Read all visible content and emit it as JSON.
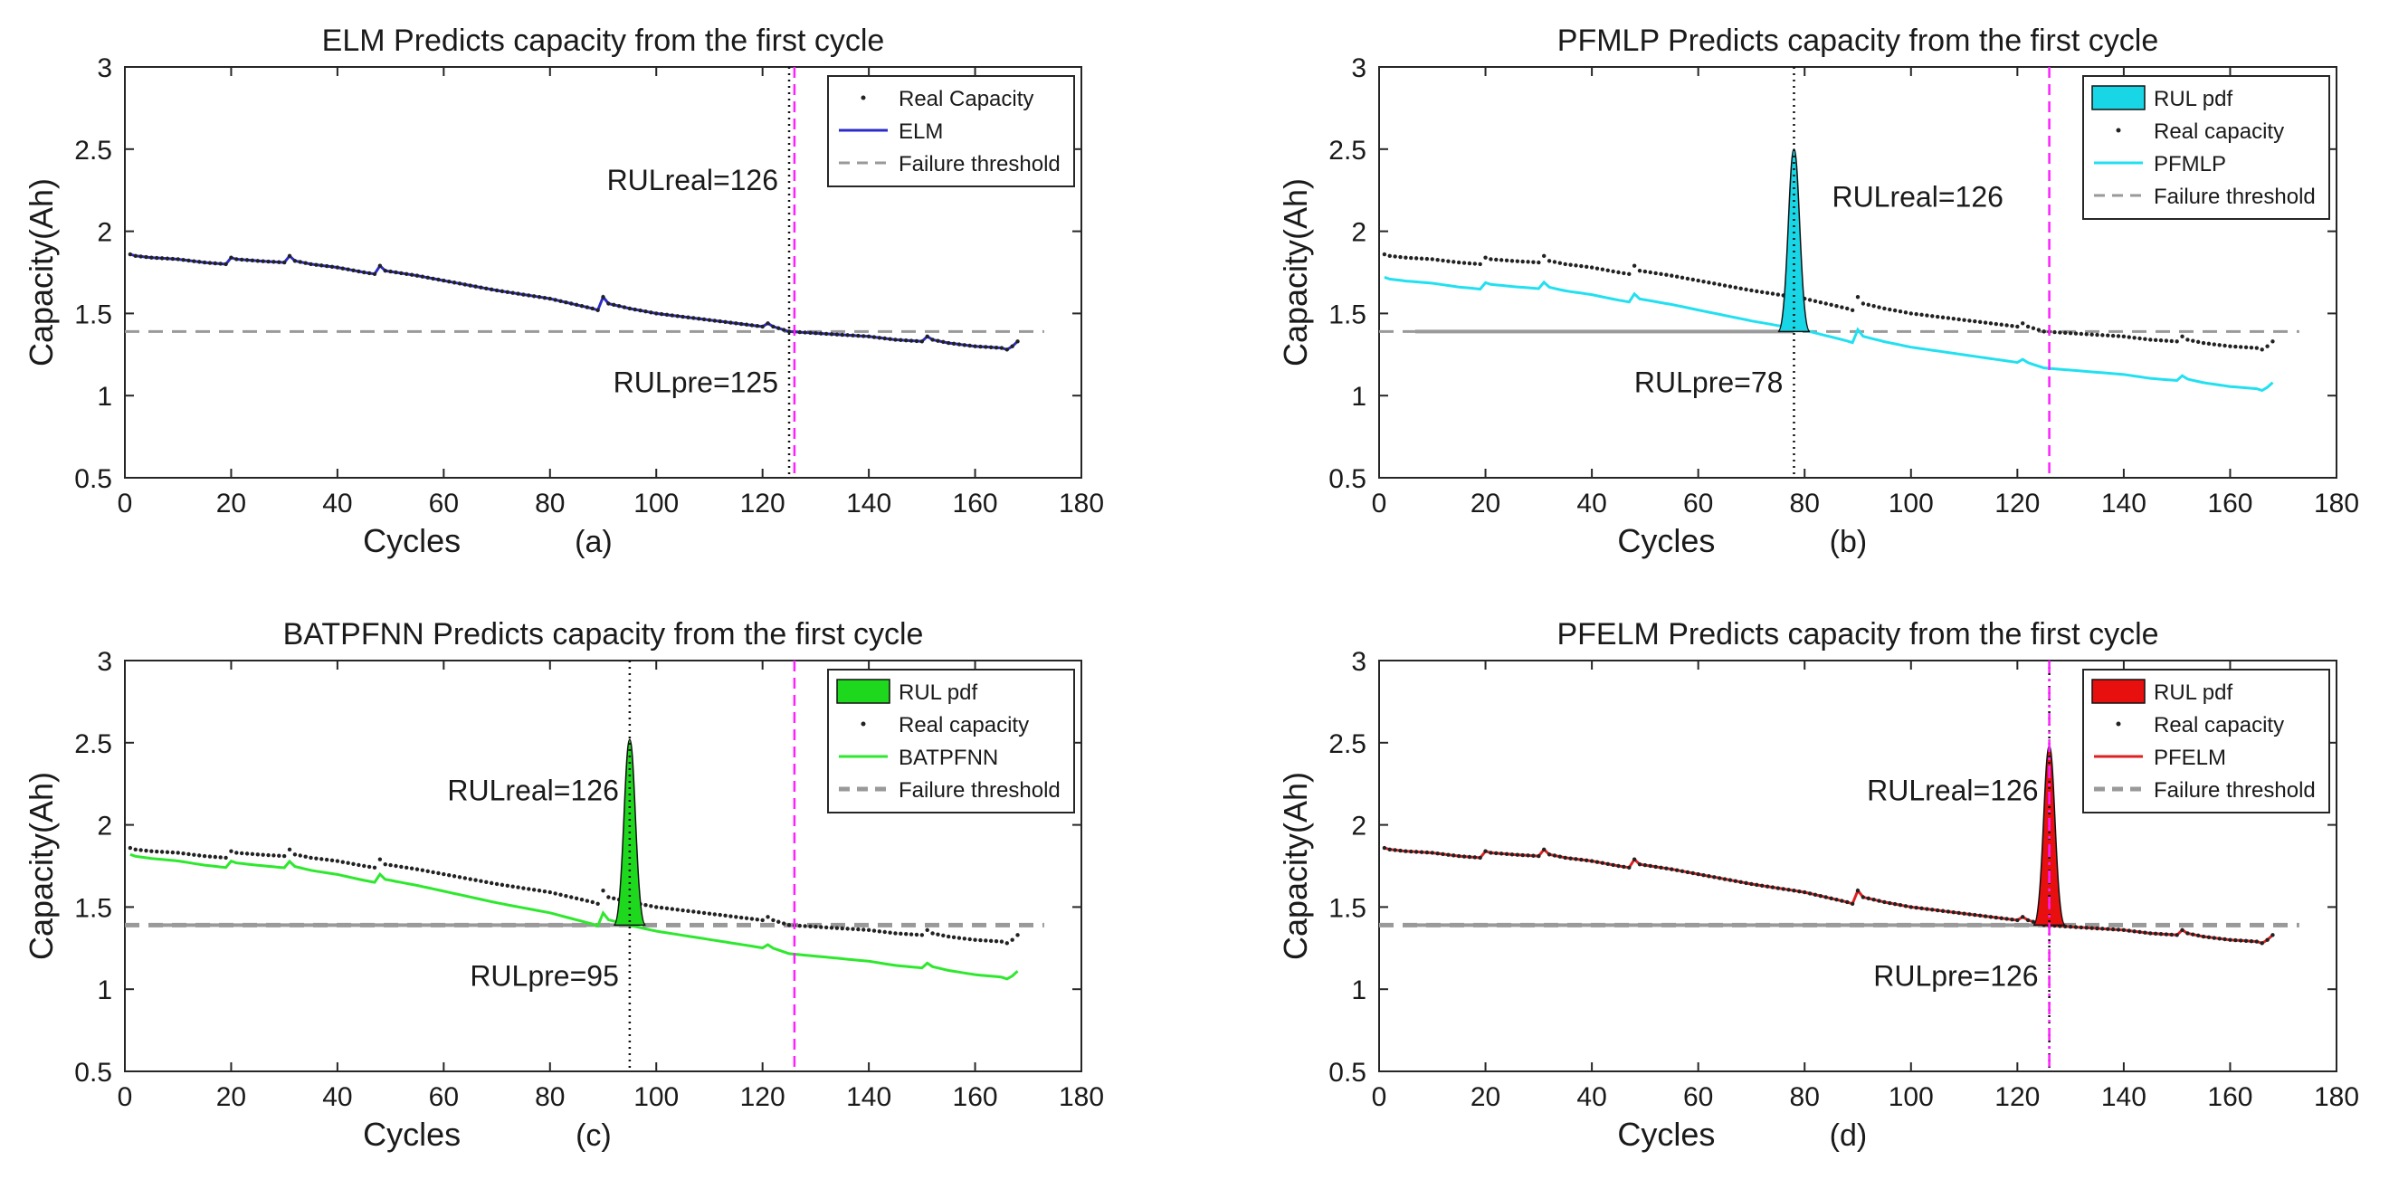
{
  "chart_data": [
    {
      "type": "line",
      "title": "ELM Predicts capacity from the first cycle",
      "xlabel": "Cycles",
      "ylabel": "Capacity(Ah)",
      "panel_label": "(a)",
      "xlim": [
        0,
        180
      ],
      "ylim": [
        0.5,
        3
      ],
      "xticks": [
        0,
        20,
        40,
        60,
        80,
        100,
        120,
        140,
        160,
        180
      ],
      "yticks": [
        0.5,
        1,
        1.5,
        2,
        2.5,
        3
      ],
      "rul_real": 126,
      "rul_pre": 125,
      "annotations": [
        "RULreal=126",
        "RULpre=125"
      ],
      "threshold": 1.39,
      "legend": [
        "Real Capacity",
        "ELM",
        "Failure threshold"
      ],
      "legend_position": "top-right",
      "series": [
        {
          "name": "ELM",
          "color": "#2b2bc8",
          "offset": 0
        },
        {
          "name": "Real Capacity",
          "color": "#222222",
          "offset": 0
        }
      ]
    },
    {
      "type": "line",
      "title": "PFMLP Predicts capacity from the first cycle",
      "xlabel": "Cycles",
      "ylabel": "Capacity(Ah)",
      "panel_label": "(b)",
      "xlim": [
        0,
        180
      ],
      "ylim": [
        0.5,
        3
      ],
      "xticks": [
        0,
        20,
        40,
        60,
        80,
        100,
        120,
        140,
        160,
        180
      ],
      "yticks": [
        0.5,
        1,
        1.5,
        2,
        2.5,
        3
      ],
      "rul_real": 126,
      "rul_pre": 78,
      "annotations": [
        "RULreal=126",
        "RULpre=78"
      ],
      "threshold": 1.39,
      "legend": [
        "RUL pdf",
        "Real capacity",
        "PFMLP",
        "Failure threshold"
      ],
      "legend_position": "top-right",
      "pdf": {
        "center": 78,
        "peak": 2.5,
        "halfwidth": 3,
        "color": "#19d6e6"
      },
      "series": [
        {
          "name": "Real capacity",
          "color": "#222222",
          "offset": 0
        },
        {
          "name": "PFMLP",
          "color": "#22e0f0",
          "offset": -0.14,
          "offset_end": -0.25
        }
      ]
    },
    {
      "type": "line",
      "title": "BATPFNN Predicts capacity from the first cycle",
      "xlabel": "Cycles",
      "ylabel": "Capacity(Ah)",
      "panel_label": "(c)",
      "xlim": [
        0,
        180
      ],
      "ylim": [
        0.5,
        3
      ],
      "xticks": [
        0,
        20,
        40,
        60,
        80,
        100,
        120,
        140,
        160,
        180
      ],
      "yticks": [
        0.5,
        1,
        1.5,
        2,
        2.5,
        3
      ],
      "rul_real": 126,
      "rul_pre": 95,
      "annotations": [
        "RULreal=126",
        "RULpre=95"
      ],
      "threshold": 1.39,
      "legend": [
        "RUL pdf",
        "Real capacity",
        "BATPFNN",
        "Failure threshold"
      ],
      "legend_position": "top-right",
      "pdf": {
        "center": 95,
        "peak": 2.52,
        "halfwidth": 3,
        "color": "#1ed81e"
      },
      "series": [
        {
          "name": "Real capacity",
          "color": "#222222",
          "offset": 0
        },
        {
          "name": "BATPFNN",
          "color": "#2ee82e",
          "offset": -0.04,
          "offset_end": -0.22
        }
      ]
    },
    {
      "type": "line",
      "title": "PFELM Predicts capacity from the first cycle",
      "xlabel": "Cycles",
      "ylabel": "Capacity(Ah)",
      "panel_label": "(d)",
      "xlim": [
        0,
        180
      ],
      "ylim": [
        0.5,
        3
      ],
      "xticks": [
        0,
        20,
        40,
        60,
        80,
        100,
        120,
        140,
        160,
        180
      ],
      "yticks": [
        0.5,
        1,
        1.5,
        2,
        2.5,
        3
      ],
      "rul_real": 126,
      "rul_pre": 126,
      "annotations": [
        "RULreal=126",
        "RULpre=126"
      ],
      "threshold": 1.39,
      "legend": [
        "RUL pdf",
        "Real capacity",
        "PFELM",
        "Failure threshold"
      ],
      "legend_position": "top-right",
      "pdf": {
        "center": 126,
        "peak": 2.48,
        "halfwidth": 3,
        "color": "#e80f0f"
      },
      "series": [
        {
          "name": "PFELM",
          "color": "#e02020",
          "offset": 0
        },
        {
          "name": "Real capacity",
          "color": "#222222",
          "offset": 0
        }
      ]
    }
  ],
  "real_capacity_profile": {
    "x": [
      1,
      2,
      5,
      10,
      15,
      19,
      20,
      21,
      25,
      30,
      31,
      32,
      35,
      40,
      45,
      47,
      48,
      49,
      55,
      60,
      70,
      80,
      88,
      89,
      90,
      91,
      95,
      100,
      105,
      110,
      115,
      120,
      121,
      122,
      125,
      130,
      135,
      140,
      145,
      150,
      151,
      152,
      155,
      160,
      165,
      166,
      167,
      168
    ],
    "y": [
      1.86,
      1.85,
      1.84,
      1.83,
      1.81,
      1.8,
      1.84,
      1.83,
      1.82,
      1.81,
      1.85,
      1.82,
      1.8,
      1.78,
      1.75,
      1.74,
      1.79,
      1.76,
      1.73,
      1.7,
      1.64,
      1.59,
      1.53,
      1.52,
      1.6,
      1.56,
      1.53,
      1.5,
      1.48,
      1.46,
      1.44,
      1.42,
      1.44,
      1.42,
      1.39,
      1.38,
      1.37,
      1.36,
      1.34,
      1.33,
      1.36,
      1.34,
      1.32,
      1.3,
      1.29,
      1.28,
      1.3,
      1.33
    ]
  }
}
